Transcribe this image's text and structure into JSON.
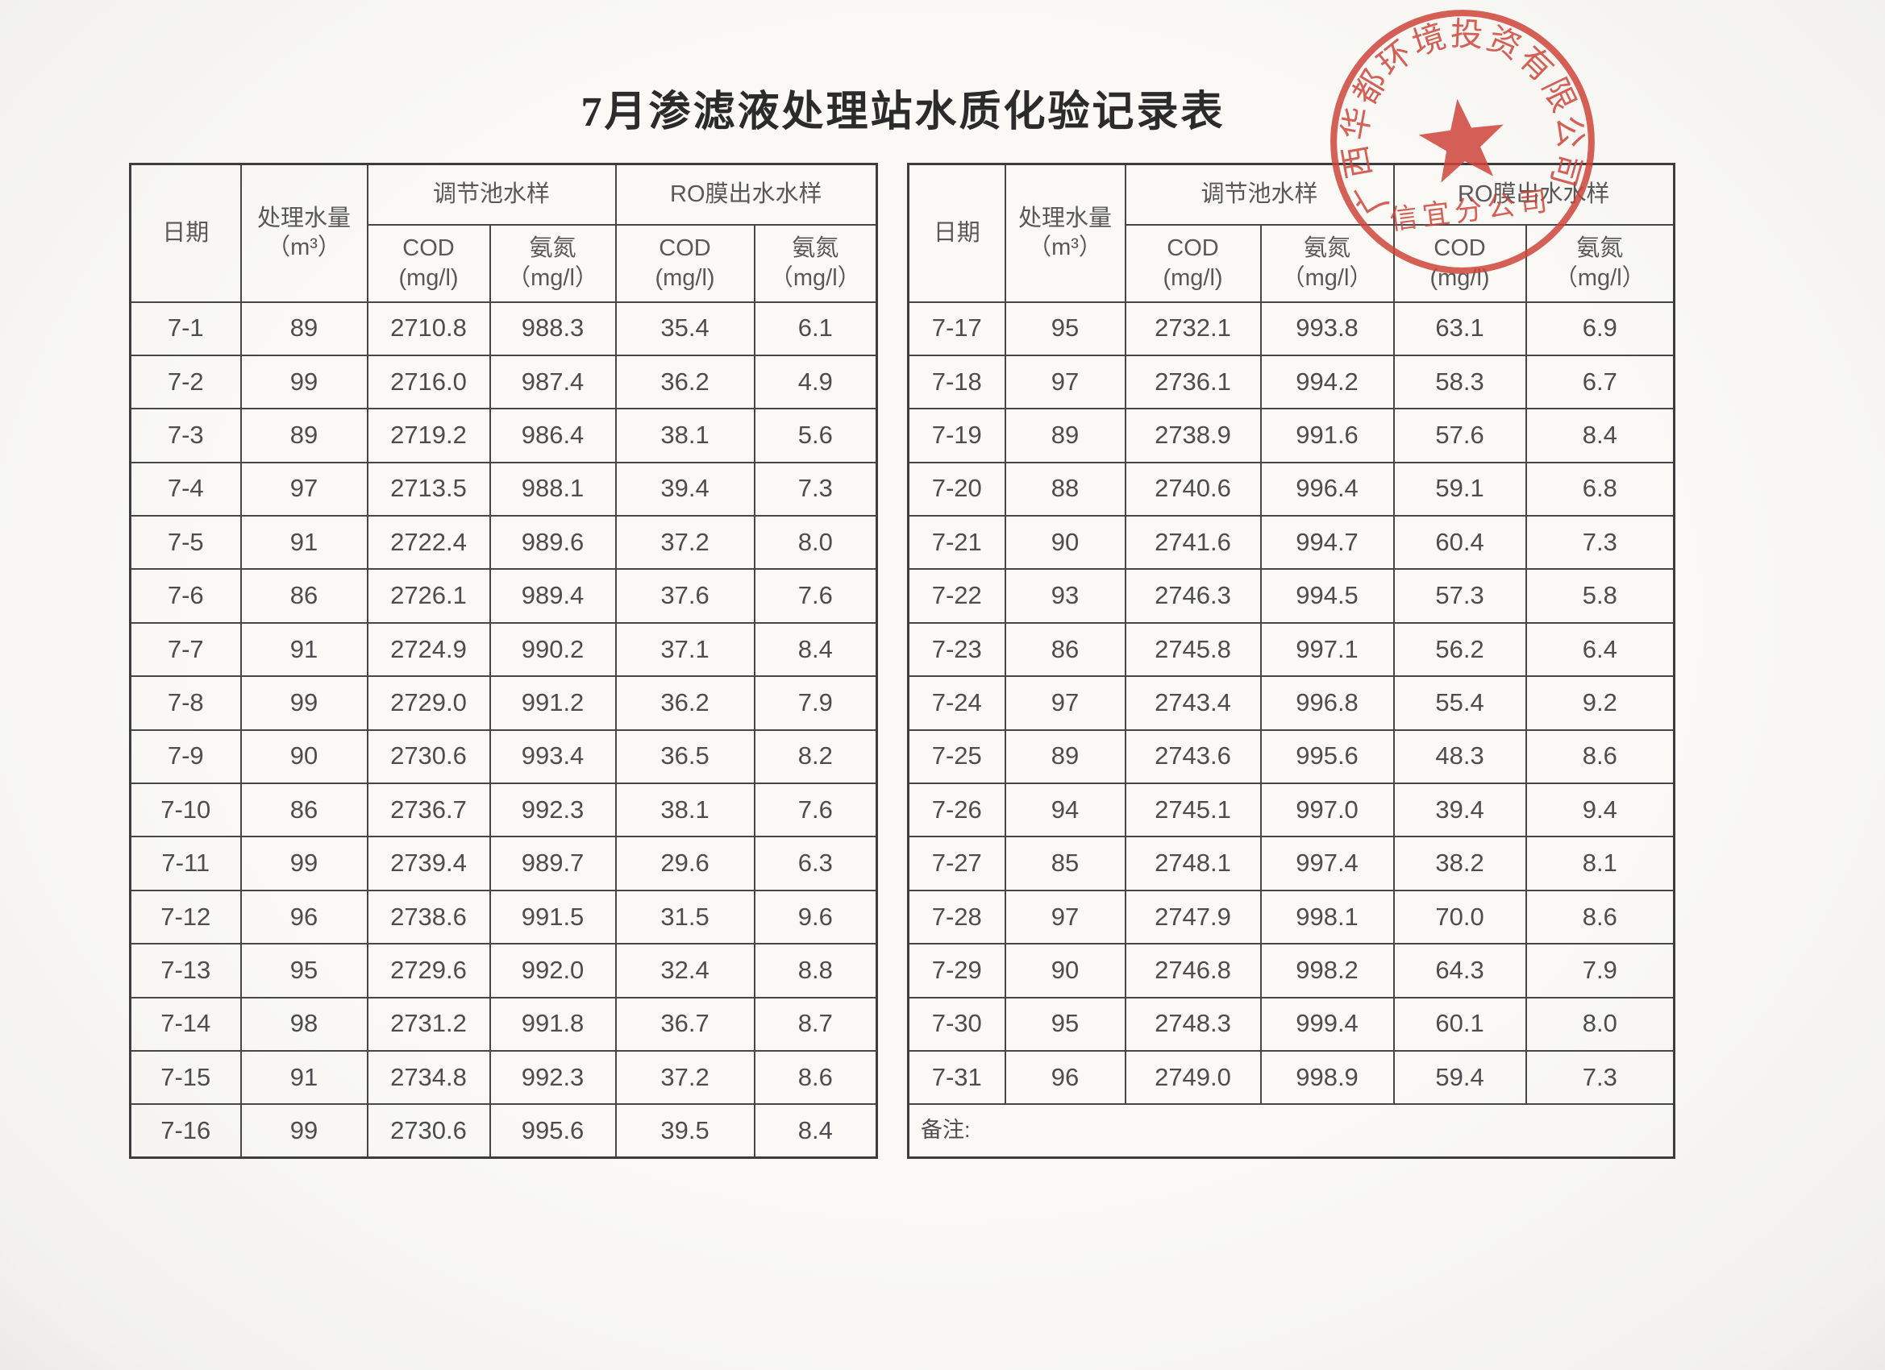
{
  "page": {
    "title": "7月渗滤液处理站水质化验记录表"
  },
  "table_headers": {
    "date": "日期",
    "volume": "处理水量",
    "volume_unit": "（m³）",
    "pool_group": "调节池水样",
    "ro_group": "RO膜出水水样",
    "cod": "COD",
    "cod_unit": "(mg/l)",
    "nh3": "氨氮",
    "nh3_unit": "（mg/l）",
    "remarks": "备注:"
  },
  "left_table": {
    "rows": [
      [
        "7-1",
        "89",
        "2710.8",
        "988.3",
        "35.4",
        "6.1"
      ],
      [
        "7-2",
        "99",
        "2716.0",
        "987.4",
        "36.2",
        "4.9"
      ],
      [
        "7-3",
        "89",
        "2719.2",
        "986.4",
        "38.1",
        "5.6"
      ],
      [
        "7-4",
        "97",
        "2713.5",
        "988.1",
        "39.4",
        "7.3"
      ],
      [
        "7-5",
        "91",
        "2722.4",
        "989.6",
        "37.2",
        "8.0"
      ],
      [
        "7-6",
        "86",
        "2726.1",
        "989.4",
        "37.6",
        "7.6"
      ],
      [
        "7-7",
        "91",
        "2724.9",
        "990.2",
        "37.1",
        "8.4"
      ],
      [
        "7-8",
        "99",
        "2729.0",
        "991.2",
        "36.2",
        "7.9"
      ],
      [
        "7-9",
        "90",
        "2730.6",
        "993.4",
        "36.5",
        "8.2"
      ],
      [
        "7-10",
        "86",
        "2736.7",
        "992.3",
        "38.1",
        "7.6"
      ],
      [
        "7-11",
        "99",
        "2739.4",
        "989.7",
        "29.6",
        "6.3"
      ],
      [
        "7-12",
        "96",
        "2738.6",
        "991.5",
        "31.5",
        "9.6"
      ],
      [
        "7-13",
        "95",
        "2729.6",
        "992.0",
        "32.4",
        "8.8"
      ],
      [
        "7-14",
        "98",
        "2731.2",
        "991.8",
        "36.7",
        "8.7"
      ],
      [
        "7-15",
        "91",
        "2734.8",
        "992.3",
        "37.2",
        "8.6"
      ],
      [
        "7-16",
        "99",
        "2730.6",
        "995.6",
        "39.5",
        "8.4"
      ]
    ]
  },
  "right_table": {
    "rows": [
      [
        "7-17",
        "95",
        "2732.1",
        "993.8",
        "63.1",
        "6.9"
      ],
      [
        "7-18",
        "97",
        "2736.1",
        "994.2",
        "58.3",
        "6.7"
      ],
      [
        "7-19",
        "89",
        "2738.9",
        "991.6",
        "57.6",
        "8.4"
      ],
      [
        "7-20",
        "88",
        "2740.6",
        "996.4",
        "59.1",
        "6.8"
      ],
      [
        "7-21",
        "90",
        "2741.6",
        "994.7",
        "60.4",
        "7.3"
      ],
      [
        "7-22",
        "93",
        "2746.3",
        "994.5",
        "57.3",
        "5.8"
      ],
      [
        "7-23",
        "86",
        "2745.8",
        "997.1",
        "56.2",
        "6.4"
      ],
      [
        "7-24",
        "97",
        "2743.4",
        "996.8",
        "55.4",
        "9.2"
      ],
      [
        "7-25",
        "89",
        "2743.6",
        "995.6",
        "48.3",
        "8.6"
      ],
      [
        "7-26",
        "94",
        "2745.1",
        "997.0",
        "39.4",
        "9.4"
      ],
      [
        "7-27",
        "85",
        "2748.1",
        "997.4",
        "38.2",
        "8.1"
      ],
      [
        "7-28",
        "97",
        "2747.9",
        "998.1",
        "70.0",
        "8.6"
      ],
      [
        "7-29",
        "90",
        "2746.8",
        "998.2",
        "64.3",
        "7.9"
      ],
      [
        "7-30",
        "95",
        "2748.3",
        "999.4",
        "60.1",
        "8.0"
      ],
      [
        "7-31",
        "96",
        "2749.0",
        "998.9",
        "59.4",
        "7.3"
      ]
    ]
  },
  "stamp": {
    "arc_text": "广西华都环境投资有限公司",
    "bottom_text": "信宜分公司",
    "color": "#cf4338"
  }
}
